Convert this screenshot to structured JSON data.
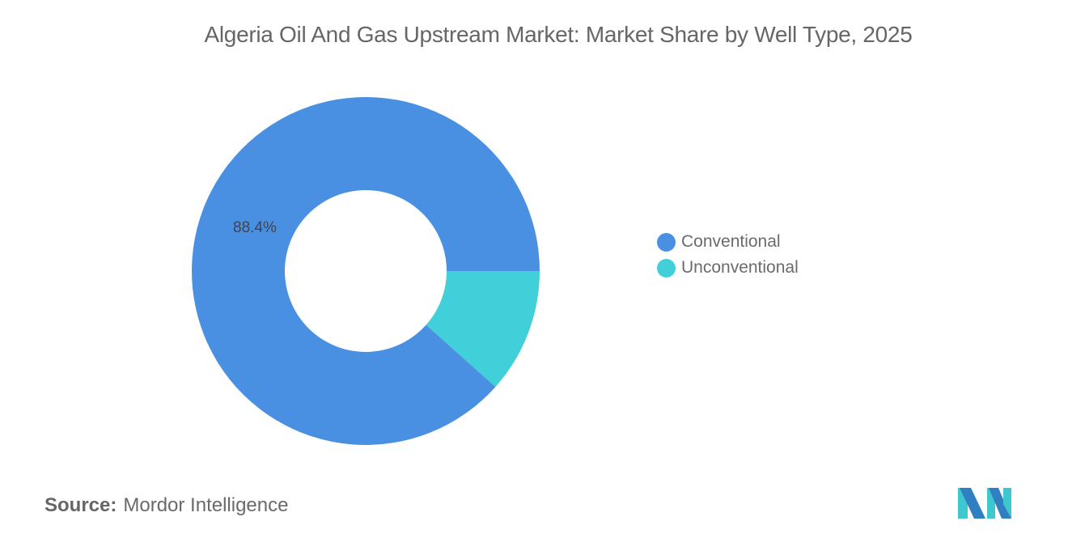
{
  "title": "Algeria Oil And Gas Upstream Market: Market Share by Well Type, 2025",
  "source": {
    "label": "Source:",
    "value": "Mordor Intelligence"
  },
  "logo": {
    "icon": "mordor-intelligence-logo-icon",
    "colors": [
      "#2f7fc1",
      "#3ec7cf"
    ]
  },
  "legend": {
    "position": "right",
    "items": [
      {
        "label": "Conventional",
        "color": "#4a90e2"
      },
      {
        "label": "Unconventional",
        "color": "#41cfd9"
      }
    ]
  },
  "slice_labels": {
    "conventional": "88.4%"
  },
  "chart_data": {
    "type": "pie",
    "variant": "donut",
    "title": "Algeria Oil And Gas Upstream Market: Market Share by Well Type, 2025",
    "categories": [
      "Conventional",
      "Unconventional"
    ],
    "values": [
      88.4,
      11.6
    ],
    "unit": "%",
    "colors": [
      "#4a90e2",
      "#41cfd9"
    ],
    "data_labels": [
      "88.4%",
      ""
    ],
    "legend_position": "right",
    "grid": false,
    "source": "Mordor Intelligence"
  }
}
